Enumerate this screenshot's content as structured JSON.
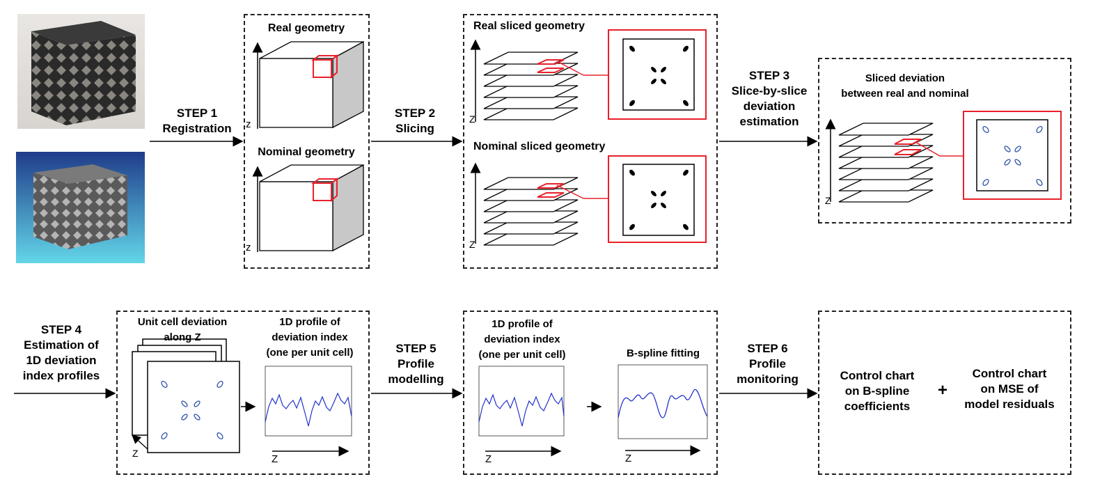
{
  "steps": [
    {
      "id": "step1",
      "title": "STEP 1",
      "lines": [
        "Registration"
      ]
    },
    {
      "id": "step2",
      "title": "STEP 2",
      "lines": [
        "Slicing"
      ]
    },
    {
      "id": "step3",
      "title": "STEP 3",
      "lines": [
        "Slice-by-slice",
        "deviation",
        "estimation"
      ]
    },
    {
      "id": "step4",
      "title": "STEP 4",
      "lines": [
        "Estimation of",
        "1D deviation",
        "index profiles"
      ]
    },
    {
      "id": "step5",
      "title": "STEP 5",
      "lines": [
        "Profile",
        "modelling"
      ]
    },
    {
      "id": "step6",
      "title": "STEP 6",
      "lines": [
        "Profile",
        "monitoring"
      ]
    }
  ],
  "labels": {
    "real_geometry": "Real geometry",
    "nominal_geometry": "Nominal geometry",
    "real_sliced": "Real sliced geometry",
    "nominal_sliced": "Nominal sliced geometry",
    "sliced_deviation_1": "Sliced deviation",
    "sliced_deviation_2": "between real and nominal",
    "unit_cell_1": "Unit cell deviation",
    "unit_cell_2": "along Z",
    "profile_1": "1D profile of",
    "profile_2": "deviation index",
    "profile_3": "(one per unit cell)",
    "bspline": "B-spline fitting",
    "cc1_1": "Control chart",
    "cc1_2": "on B-spline",
    "cc1_3": "coefficients",
    "plus": "+",
    "cc2_1": "Control chart",
    "cc2_2": "on MSE of",
    "cc2_3": "model residuals",
    "axis_z": "Z",
    "axis_z_lower": "z"
  },
  "colors": {
    "highlight": "#e8202a",
    "profile_line": "#2233cc",
    "photo_bg_top": "#1f3c8a",
    "photo_bg_bottom": "#63d6e8"
  },
  "icons": [
    "lattice-photo-real",
    "lattice-render-nominal",
    "cube-icon",
    "slice-stack-icon",
    "cross-section-icon",
    "profile-plot-icon"
  ]
}
